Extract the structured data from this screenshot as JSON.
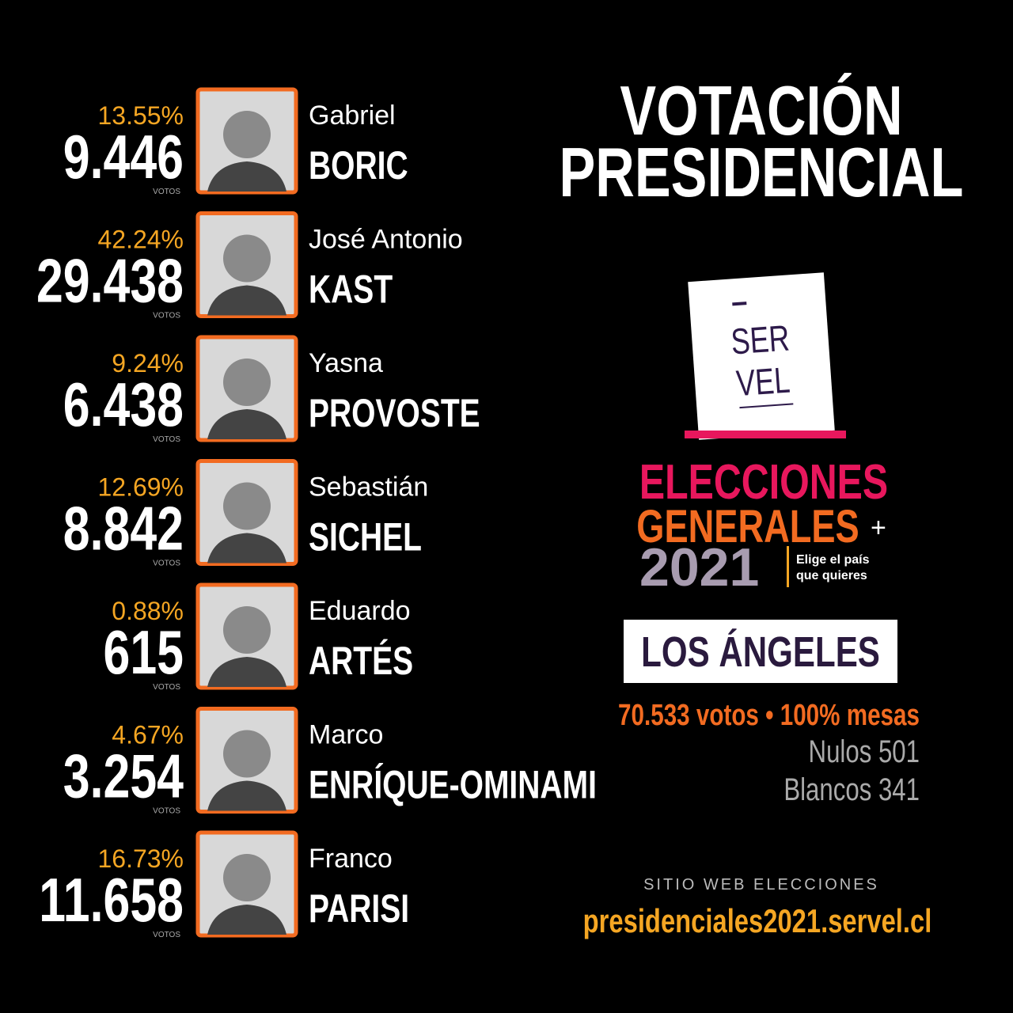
{
  "header": {
    "title_lines": [
      "VOTACIÓN",
      "PRESIDENCIAL"
    ]
  },
  "candidates": [
    {
      "percent": "13.55%",
      "votes": "9.446",
      "unit": "VOTOS",
      "first_name": "Gabriel",
      "last_name": "BORIC"
    },
    {
      "percent": "42.24%",
      "votes": "29.438",
      "unit": "VOTOS",
      "first_name": "José Antonio",
      "last_name": "KAST"
    },
    {
      "percent": "9.24%",
      "votes": "6.438",
      "unit": "VOTOS",
      "first_name": "Yasna",
      "last_name": "PROVOSTE"
    },
    {
      "percent": "12.69%",
      "votes": "8.842",
      "unit": "VOTOS",
      "first_name": "Sebastián",
      "last_name": "SICHEL"
    },
    {
      "percent": "0.88%",
      "votes": "615",
      "unit": "VOTOS",
      "first_name": "Eduardo",
      "last_name": "ARTÉS"
    },
    {
      "percent": "4.67%",
      "votes": "3.254",
      "unit": "VOTOS",
      "first_name": "Marco",
      "last_name": "ENRÍQUE-OMINAMI"
    },
    {
      "percent": "16.73%",
      "votes": "11.658",
      "unit": "VOTOS",
      "first_name": "Franco",
      "last_name": "PARISI"
    }
  ],
  "logo": {
    "ballot_lines": [
      "SER",
      "VEL"
    ],
    "line1": "ELECCIONES",
    "line2": "GENERALES",
    "plus": "+",
    "year": "2021",
    "slogan_lines": [
      "Elige el país",
      "que quieres"
    ]
  },
  "location": "LOS ÁNGELES",
  "summary": {
    "total": "70.533 votos • 100% mesas",
    "null": "Nulos 501",
    "blank": "Blancos 341"
  },
  "website": {
    "label": "SITIO WEB ELECCIONES",
    "url": "presidenciales2021.servel.cl"
  }
}
